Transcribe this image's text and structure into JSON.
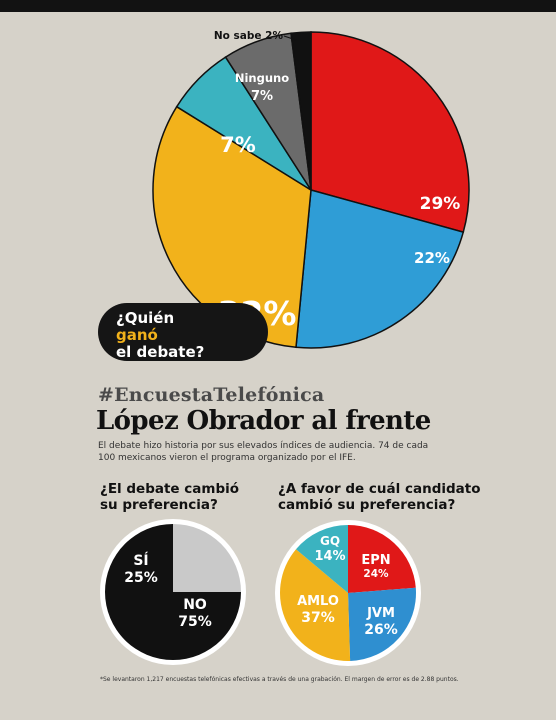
{
  "header": {
    "hashtag": "#EncuestaTelefónica",
    "headline": "López Obrador al frente",
    "subtitle": "El debate hizo historia por sus elevados índices de audiencia. 74 de cada 100 mexicanos vieron el programa organizado por el IFE."
  },
  "callout": {
    "line1": "¿Quién",
    "line2_highlight": "ganó",
    "line3": "el debate?"
  },
  "footnote": "*Se levantaron 1,217 encuestas telefónicas efectivas a través de una grabación. El margen de error es de 2.88 puntos.",
  "chart_data": [
    {
      "type": "pie",
      "question": "¿Quién ganó el debate?",
      "categories": [
        "",
        "",
        "",
        "",
        "Ninguno",
        "No sabe"
      ],
      "values": [
        29,
        22,
        32,
        7,
        7,
        2
      ],
      "labels": [
        "29%",
        "22%",
        "32%",
        "7%",
        "7%",
        "2%"
      ],
      "colors": [
        "#e01818",
        "#2f9dd6",
        "#f2b21b",
        "#3bb3c0",
        "#6b6b6b",
        "#111111"
      ]
    },
    {
      "type": "pie",
      "title": "¿El debate cambió su preferencia?",
      "categories": [
        "SÍ",
        "NO"
      ],
      "values": [
        25,
        75
      ],
      "labels": [
        "25%",
        "75%"
      ],
      "colors": [
        "#c9c9c9",
        "#111111"
      ]
    },
    {
      "type": "pie",
      "title": "¿A favor de cuál candidato cambió su preferencia?",
      "categories": [
        "EPN",
        "JVM",
        "AMLO",
        "GQ"
      ],
      "values": [
        24,
        26,
        37,
        14
      ],
      "labels": [
        "24%",
        "26%",
        "37%",
        "14%"
      ],
      "colors": [
        "#e01818",
        "#2f8fd0",
        "#f2b21b",
        "#3bb3c0"
      ]
    }
  ]
}
